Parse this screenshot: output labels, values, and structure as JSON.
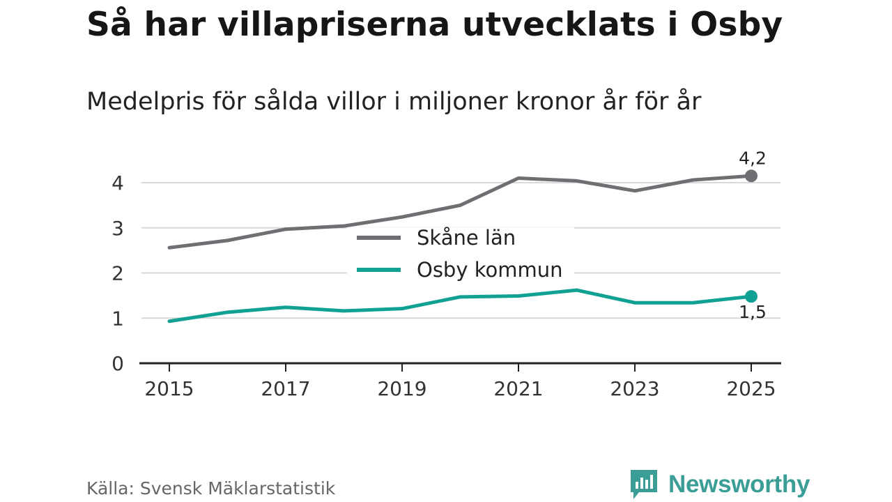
{
  "title": "Så har villapriserna utvecklats i Osby",
  "subtitle": "Medelpris för sålda villor i miljoner kronor år för år",
  "source": "Källa: Svensk Mäklarstatistik",
  "brand": {
    "name": "Newsworthy",
    "icon": "newsworthy-bar-chart-icon",
    "color": "#3a9e96"
  },
  "chart_data": {
    "type": "line",
    "x": [
      2015,
      2016,
      2017,
      2018,
      2019,
      2020,
      2021,
      2022,
      2023,
      2024,
      2025
    ],
    "x_tick_labels": [
      "2015",
      "2017",
      "2019",
      "2021",
      "2023",
      "2025"
    ],
    "y_tick_labels": [
      "0",
      "1",
      "2",
      "3",
      "4"
    ],
    "ylim": [
      0,
      4.5
    ],
    "grid": true,
    "legend_position": "center",
    "series": [
      {
        "name": "Skåne län",
        "color": "#6f6e73",
        "values": [
          2.56,
          2.72,
          2.97,
          3.04,
          3.24,
          3.5,
          4.1,
          4.04,
          3.82,
          4.06,
          4.15
        ],
        "end_label": "4,2"
      },
      {
        "name": "Osby kommun",
        "color": "#11a194",
        "values": [
          0.93,
          1.13,
          1.24,
          1.16,
          1.21,
          1.47,
          1.49,
          1.62,
          1.34,
          1.34,
          1.48
        ],
        "end_label": "1,5"
      }
    ]
  }
}
